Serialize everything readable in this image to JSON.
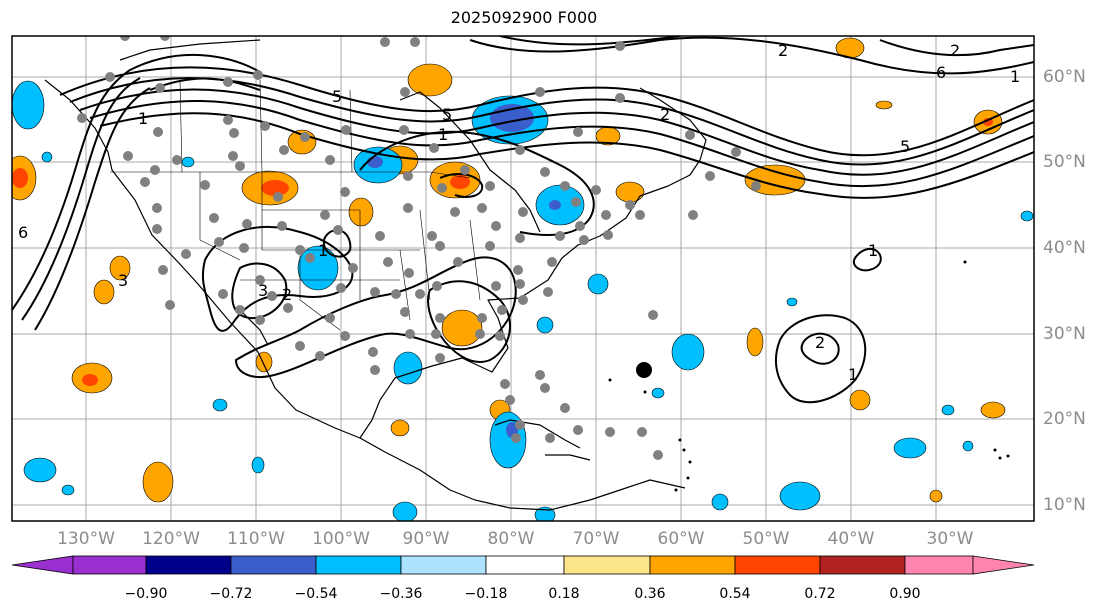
{
  "title": "2025092900 F000",
  "longitude_labels": [
    "130°W",
    "120°W",
    "110°W",
    "100°W",
    "90°W",
    "80°W",
    "70°W",
    "60°W",
    "50°W",
    "40°W",
    "30°W"
  ],
  "latitude_labels": [
    "60°N",
    "50°N",
    "40°N",
    "30°N",
    "20°N",
    "10°N"
  ],
  "colorbar": {
    "ticks": [
      "−0.90",
      "−0.72",
      "−0.54",
      "−0.36",
      "−0.18",
      "0.18",
      "0.36",
      "0.54",
      "0.72",
      "0.90"
    ],
    "colors": [
      "#9b30d0",
      "#00008b",
      "#3a5fcd",
      "#00bfff",
      "#aee3ff",
      "#ffffff",
      "#fde68a",
      "#ffa500",
      "#ff4500",
      "#b22222",
      "#ff85b0"
    ]
  },
  "contour_labels": [
    "1",
    "2",
    "3",
    "5",
    "6",
    "2",
    "1",
    "5",
    "1",
    "2",
    "6",
    "5",
    "1",
    "2",
    "1",
    "1",
    "2",
    "3"
  ],
  "icons": {
    "station": "gray-station-dot",
    "storm": "black-storm-dot"
  }
}
